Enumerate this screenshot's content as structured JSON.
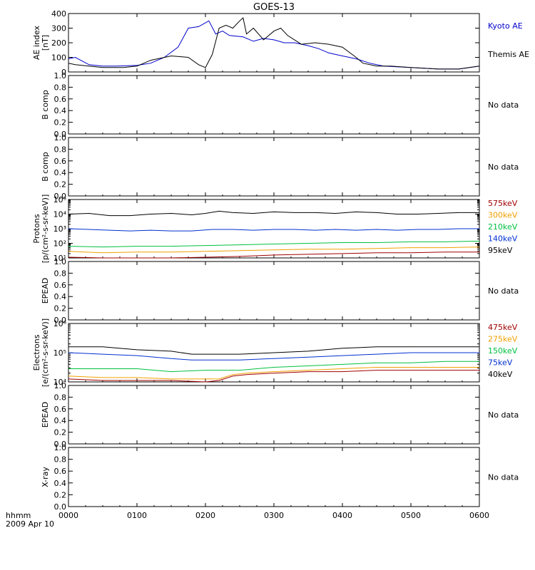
{
  "chart_data": {
    "type": "line",
    "title": "GOES-13",
    "x_time_labels": [
      "0000",
      "0100",
      "0200",
      "0300",
      "0400",
      "0500",
      "0600"
    ],
    "x_range_hours": [
      0,
      6
    ],
    "footer": {
      "unit_label": "hhmm",
      "date_label": "2009 Apr 10"
    },
    "panels": [
      {
        "id": "ae",
        "ylabel_1": "AE index",
        "ylabel_2": "[nT]",
        "ylim": [
          0,
          400
        ],
        "scale": "linear",
        "yticks": [
          0,
          100,
          200,
          300,
          400
        ],
        "ytick_labels": [
          "0",
          "100",
          "200",
          "300",
          "400"
        ],
        "no_data": "",
        "series": [
          {
            "name": "Kyoto AE",
            "color": "#0000cc",
            "x": [
              0,
              0.1,
              0.3,
              0.5,
              0.7,
              1.0,
              1.2,
              1.4,
              1.6,
              1.75,
              1.9,
              2.05,
              2.15,
              2.25,
              2.35,
              2.55,
              2.7,
              2.85,
              3.0,
              3.15,
              3.3,
              3.5,
              3.65,
              3.8,
              4.0,
              4.2,
              4.4,
              4.6,
              5.0,
              5.4,
              5.7,
              6.0
            ],
            "y": [
              90,
              100,
              50,
              40,
              40,
              45,
              60,
              100,
              170,
              300,
              310,
              350,
              260,
              280,
              250,
              240,
              210,
              230,
              220,
              200,
              200,
              180,
              160,
              130,
              110,
              90,
              60,
              40,
              30,
              20,
              20,
              40
            ]
          },
          {
            "name": "Themis AE",
            "color": "#000000",
            "x": [
              0,
              0.1,
              0.3,
              0.5,
              0.8,
              1.0,
              1.2,
              1.5,
              1.75,
              1.9,
              2.0,
              2.1,
              2.2,
              2.3,
              2.4,
              2.5,
              2.55,
              2.6,
              2.7,
              2.85,
              3.0,
              3.1,
              3.2,
              3.4,
              3.6,
              3.8,
              4.0,
              4.2,
              4.3,
              4.5,
              4.7,
              5.0,
              5.4,
              5.7,
              6.0
            ],
            "y": [
              60,
              50,
              40,
              30,
              30,
              40,
              80,
              110,
              100,
              50,
              30,
              120,
              300,
              320,
              300,
              350,
              370,
              260,
              300,
              220,
              280,
              300,
              250,
              190,
              200,
              190,
              170,
              100,
              60,
              40,
              40,
              30,
              20,
              20,
              40
            ]
          }
        ]
      },
      {
        "id": "b1",
        "ylabel_1": "B comp",
        "ylim": [
          0,
          1
        ],
        "scale": "linear",
        "yticks": [
          0,
          0.2,
          0.4,
          0.6,
          0.8,
          1.0
        ],
        "ytick_labels": [
          "0.0",
          "0.2",
          "0.4",
          "0.6",
          "0.8",
          "1.0"
        ],
        "no_data": "No data",
        "series": []
      },
      {
        "id": "b2",
        "ylabel_1": "B comp",
        "ylim": [
          0,
          1
        ],
        "scale": "linear",
        "yticks": [
          0,
          0.2,
          0.4,
          0.6,
          0.8,
          1.0
        ],
        "ytick_labels": [
          "0.0",
          "0.2",
          "0.4",
          "0.6",
          "0.8",
          "1.0"
        ],
        "no_data": "No data",
        "series": []
      },
      {
        "id": "protons",
        "ylabel_1": "Protons",
        "ylabel_2": "[p/(cm²-s-sr-keV)]",
        "ylim_log10": [
          1,
          5
        ],
        "scale": "log",
        "yticks": [
          1,
          2,
          3,
          4,
          5
        ],
        "ytick_labels": [
          "10¹",
          "10²",
          "10³",
          "10⁴",
          "10⁵"
        ],
        "no_data": "",
        "series": [
          {
            "name": "575keV",
            "color": "#a00000",
            "x": [
              0,
              0.5,
              1.0,
              1.5,
              2.0,
              2.5,
              3.0,
              3.5,
              4.0,
              4.5,
              5.0,
              5.5,
              6.0
            ],
            "y_log10": [
              1.05,
              1.0,
              1.0,
              1.0,
              1.05,
              1.1,
              1.2,
              1.25,
              1.3,
              1.35,
              1.35,
              1.4,
              1.4
            ]
          },
          {
            "name": "300keV",
            "color": "#f0a000",
            "x": [
              0,
              0.5,
              1.0,
              1.5,
              2.0,
              2.5,
              3.0,
              3.5,
              4.0,
              4.5,
              5.0,
              5.5,
              6.0
            ],
            "y_log10": [
              1.45,
              1.35,
              1.4,
              1.4,
              1.45,
              1.5,
              1.55,
              1.6,
              1.6,
              1.65,
              1.7,
              1.7,
              1.75
            ]
          },
          {
            "name": "210keV",
            "color": "#00c040",
            "x": [
              0,
              0.5,
              1.0,
              1.5,
              2.0,
              2.5,
              3.0,
              3.5,
              4.0,
              4.5,
              5.0,
              5.5,
              6.0
            ],
            "y_log10": [
              1.8,
              1.75,
              1.8,
              1.8,
              1.85,
              1.9,
              1.95,
              2.0,
              2.05,
              2.05,
              2.1,
              2.1,
              2.15
            ]
          },
          {
            "name": "140keV",
            "color": "#0030d0",
            "x": [
              0,
              0.3,
              0.6,
              0.9,
              1.2,
              1.5,
              1.8,
              2.1,
              2.4,
              2.7,
              3.0,
              3.3,
              3.6,
              3.9,
              4.2,
              4.5,
              4.8,
              5.1,
              5.4,
              5.7,
              6.0
            ],
            "y_log10": [
              3.0,
              2.95,
              2.9,
              2.85,
              2.9,
              2.85,
              2.85,
              2.95,
              2.95,
              2.9,
              2.95,
              2.95,
              2.9,
              2.95,
              2.9,
              2.95,
              2.9,
              2.95,
              2.95,
              3.0,
              3.0
            ]
          },
          {
            "name": "95keV",
            "color": "#000000",
            "x": [
              0,
              0.3,
              0.6,
              0.9,
              1.2,
              1.5,
              1.8,
              2.0,
              2.2,
              2.4,
              2.7,
              3.0,
              3.3,
              3.6,
              3.9,
              4.2,
              4.5,
              4.8,
              5.1,
              5.4,
              5.7,
              6.0
            ],
            "y_log10": [
              4.0,
              4.05,
              3.9,
              3.9,
              4.0,
              4.05,
              3.95,
              4.05,
              4.2,
              4.1,
              4.05,
              4.15,
              4.1,
              4.1,
              4.05,
              4.15,
              4.1,
              4.0,
              4.0,
              4.05,
              4.1,
              4.1
            ]
          }
        ]
      },
      {
        "id": "epead1",
        "ylabel_1": "EPEAD",
        "ylim": [
          0,
          1
        ],
        "scale": "linear",
        "yticks": [
          0,
          0.2,
          0.4,
          0.6,
          0.8,
          1.0
        ],
        "ytick_labels": [
          "0.0",
          "0.2",
          "0.4",
          "0.6",
          "0.8",
          "1.0"
        ],
        "no_data": "No data",
        "series": []
      },
      {
        "id": "electrons",
        "ylabel_1": "Electrons",
        "ylabel_2": "[e/(cm²-s-sr-keV)]",
        "ylim_log10": [
          4,
          6
        ],
        "scale": "log",
        "yticks": [
          4,
          5,
          6
        ],
        "ytick_labels": [
          "10⁴",
          "10⁵",
          "10⁶"
        ],
        "no_data": "",
        "series": [
          {
            "name": "475keV",
            "color": "#a00000",
            "x": [
              0,
              0.5,
              1.0,
              1.5,
              2.0,
              2.2,
              2.4,
              2.6,
              3.0,
              3.5,
              4.0,
              4.5,
              5.0,
              5.5,
              6.0
            ],
            "y_log10": [
              4.1,
              4.05,
              4.05,
              4.05,
              4.0,
              4.05,
              4.2,
              4.25,
              4.3,
              4.35,
              4.35,
              4.4,
              4.4,
              4.4,
              4.4
            ]
          },
          {
            "name": "275keV",
            "color": "#f0a000",
            "x": [
              0,
              0.5,
              1.0,
              1.5,
              2.0,
              2.2,
              2.4,
              2.6,
              3.0,
              3.5,
              4.0,
              4.5,
              5.0,
              5.5,
              6.0
            ],
            "y_log10": [
              4.2,
              4.15,
              4.15,
              4.1,
              4.1,
              4.1,
              4.25,
              4.3,
              4.35,
              4.4,
              4.45,
              4.5,
              4.5,
              4.5,
              4.5
            ]
          },
          {
            "name": "150keV",
            "color": "#00c040",
            "x": [
              0,
              0.5,
              1.0,
              1.5,
              2.0,
              2.5,
              3.0,
              3.5,
              4.0,
              4.5,
              5.0,
              5.5,
              6.0
            ],
            "y_log10": [
              4.45,
              4.45,
              4.45,
              4.35,
              4.4,
              4.4,
              4.5,
              4.55,
              4.6,
              4.65,
              4.65,
              4.7,
              4.7
            ]
          },
          {
            "name": "75keV",
            "color": "#0030d0",
            "x": [
              0,
              0.5,
              1.0,
              1.5,
              1.8,
              2.0,
              2.5,
              3.0,
              3.5,
              4.0,
              4.5,
              5.0,
              5.5,
              6.0
            ],
            "y_log10": [
              5.0,
              4.95,
              4.9,
              4.8,
              4.75,
              4.75,
              4.75,
              4.8,
              4.85,
              4.9,
              4.95,
              5.0,
              5.0,
              5.0
            ]
          },
          {
            "name": "40keV",
            "color": "#000000",
            "x": [
              0,
              0.5,
              1.0,
              1.5,
              1.8,
              2.0,
              2.5,
              3.0,
              3.5,
              4.0,
              4.5,
              5.0,
              5.5,
              6.0
            ],
            "y_log10": [
              5.2,
              5.2,
              5.1,
              5.05,
              4.95,
              4.95,
              4.95,
              5.0,
              5.05,
              5.15,
              5.2,
              5.2,
              5.2,
              5.2
            ]
          }
        ]
      },
      {
        "id": "epead2",
        "ylabel_1": "EPEAD",
        "ylim": [
          0,
          1
        ],
        "scale": "linear",
        "yticks": [
          0,
          0.2,
          0.4,
          0.6,
          0.8,
          1.0
        ],
        "ytick_labels": [
          "0.0",
          "0.2",
          "0.4",
          "0.6",
          "0.8",
          "1.0"
        ],
        "no_data": "No data",
        "series": []
      },
      {
        "id": "xray",
        "ylabel_1": "X-ray",
        "ylim": [
          0,
          1
        ],
        "scale": "linear",
        "yticks": [
          0,
          0.2,
          0.4,
          0.6,
          0.8,
          1.0
        ],
        "ytick_labels": [
          "0.0",
          "0.2",
          "0.4",
          "0.6",
          "0.8",
          "1.0"
        ],
        "no_data": "No data",
        "series": []
      }
    ]
  }
}
